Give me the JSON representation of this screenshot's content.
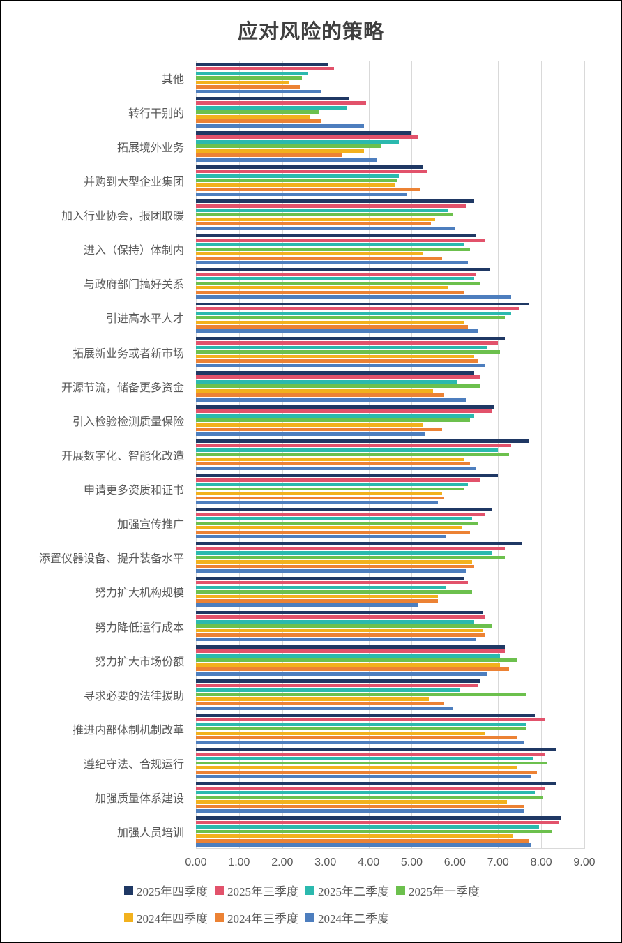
{
  "title": "应对风险的策略",
  "colors": {
    "grid": "#d9d9d9",
    "text": "#595959",
    "title_text": "#404040"
  },
  "chart_data": {
    "type": "bar",
    "orientation": "horizontal",
    "title": "应对风险的策略",
    "xlabel": "",
    "ylabel": "",
    "xlim": [
      0,
      9
    ],
    "grid": true,
    "legend_position": "bottom",
    "x_ticks": [
      "0.00",
      "1.00",
      "2.00",
      "3.00",
      "4.00",
      "5.00",
      "6.00",
      "7.00",
      "8.00",
      "9.00"
    ],
    "categories": [
      "其他",
      "转行干别的",
      "拓展境外业务",
      "并购到大型企业集团",
      "加入行业协会，报团取暖",
      "进入（保持）体制内",
      "与政府部门搞好关系",
      "引进高水平人才",
      "拓展新业务或者新市场",
      "开源节流，储备更多资金",
      "引入检验检测质量保险",
      "开展数字化、智能化改造",
      "申请更多资质和证书",
      "加强宣传推广",
      "添置仪器设备、提升装备水平",
      "努力扩大机构规模",
      "努力降低运行成本",
      "努力扩大市场份额",
      "寻求必要的法律援助",
      "推进内部体制机制改革",
      "遵纪守法、合规运行",
      "加强质量体系建设",
      "加强人员培训"
    ],
    "series": [
      {
        "name": "2025年四季度",
        "color": "#1f3864",
        "values": [
          3.05,
          3.55,
          5.0,
          5.25,
          6.45,
          6.5,
          6.8,
          7.7,
          7.15,
          6.45,
          6.9,
          7.7,
          7.0,
          6.85,
          7.55,
          6.2,
          6.65,
          7.15,
          6.6,
          7.85,
          8.35,
          8.35,
          8.45
        ]
      },
      {
        "name": "2025年三季度",
        "color": "#e2526b",
        "values": [
          3.2,
          3.95,
          5.15,
          5.35,
          6.25,
          6.7,
          6.5,
          7.5,
          7.0,
          6.6,
          6.85,
          7.3,
          6.6,
          6.7,
          7.15,
          6.3,
          6.7,
          7.15,
          6.55,
          8.1,
          8.1,
          8.1,
          8.4
        ]
      },
      {
        "name": "2025年二季度",
        "color": "#2bb9ae",
        "values": [
          2.6,
          3.5,
          4.7,
          4.7,
          5.85,
          6.2,
          6.45,
          7.3,
          6.75,
          6.05,
          6.45,
          7.0,
          6.3,
          6.4,
          6.85,
          5.8,
          6.45,
          7.05,
          6.1,
          7.65,
          7.8,
          7.85,
          7.95
        ]
      },
      {
        "name": "2025年一季度",
        "color": "#6cc04d",
        "values": [
          2.45,
          2.85,
          4.3,
          4.65,
          5.95,
          6.35,
          6.6,
          7.15,
          7.05,
          6.6,
          6.35,
          7.25,
          6.2,
          6.55,
          7.15,
          6.4,
          6.85,
          7.45,
          7.65,
          7.65,
          8.15,
          8.05,
          8.25
        ]
      },
      {
        "name": "2024年四季度",
        "color": "#f2b11d",
        "values": [
          2.15,
          2.65,
          3.9,
          4.6,
          5.55,
          5.25,
          5.85,
          6.2,
          6.45,
          5.5,
          5.25,
          6.2,
          5.7,
          6.15,
          6.4,
          5.6,
          6.65,
          7.05,
          5.4,
          6.7,
          7.45,
          7.2,
          7.35
        ]
      },
      {
        "name": "2024年三季度",
        "color": "#ec8234",
        "values": [
          2.4,
          2.9,
          3.4,
          5.2,
          5.45,
          5.7,
          6.2,
          6.3,
          6.55,
          5.75,
          5.7,
          6.35,
          5.75,
          6.35,
          6.45,
          5.6,
          6.7,
          7.25,
          5.75,
          7.45,
          7.9,
          7.6,
          7.7
        ]
      },
      {
        "name": "2024年二季度",
        "color": "#4d7ebe",
        "values": [
          2.9,
          3.9,
          4.2,
          4.9,
          6.0,
          6.3,
          7.3,
          6.55,
          6.7,
          6.25,
          5.3,
          6.5,
          5.6,
          5.8,
          6.25,
          5.15,
          6.5,
          6.75,
          5.95,
          7.6,
          7.75,
          7.6,
          7.75
        ]
      }
    ]
  }
}
